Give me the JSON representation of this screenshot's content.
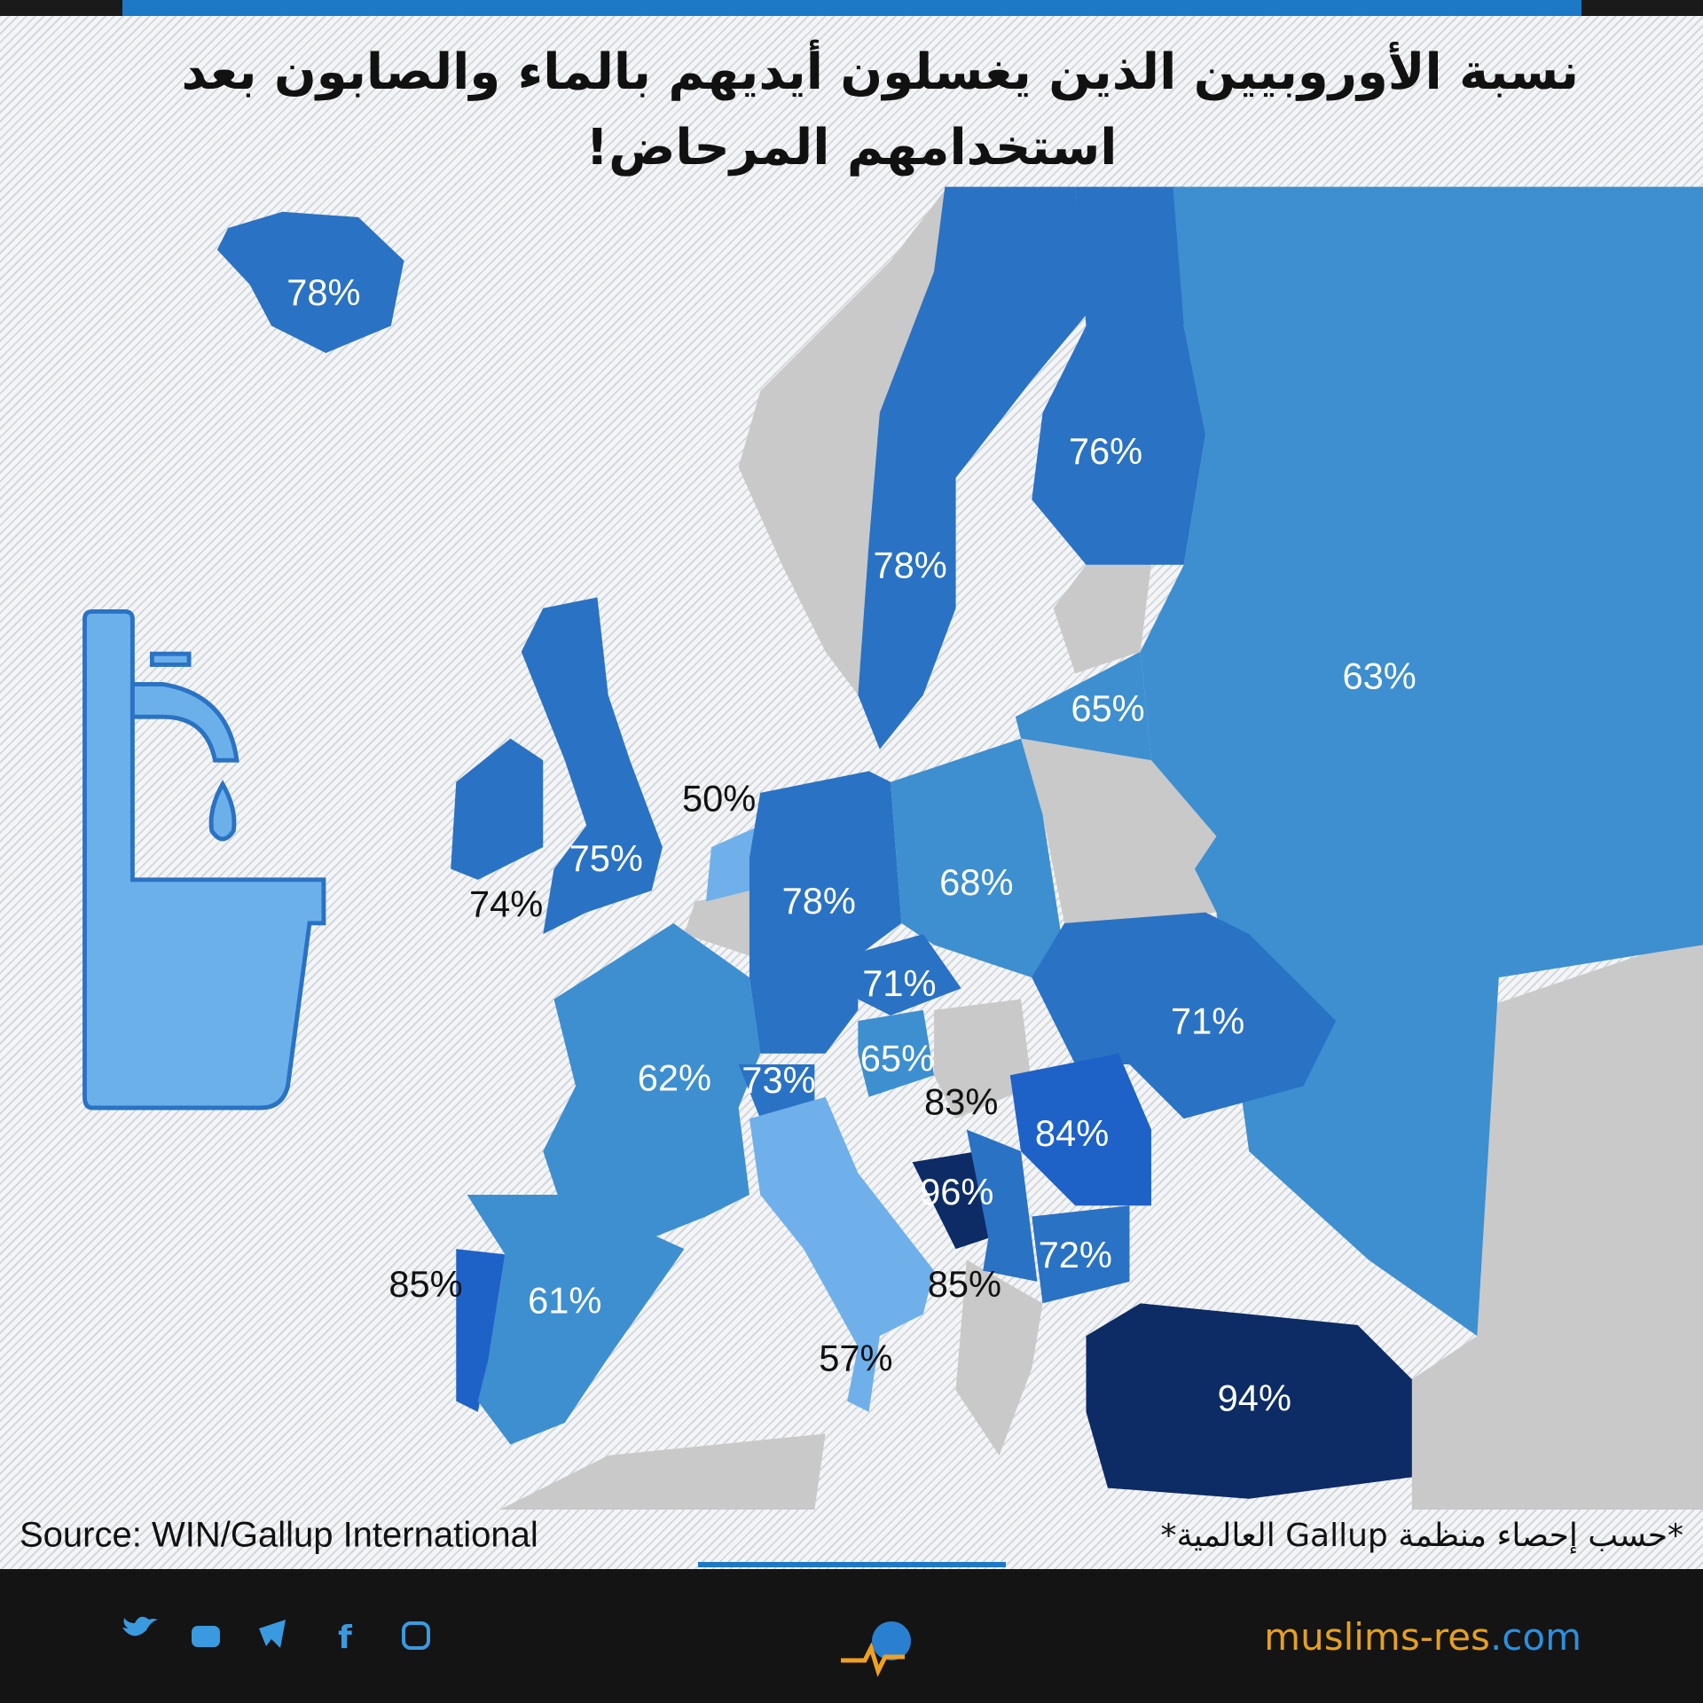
{
  "title": {
    "lines": [
      "نسبة الأوروبيين الذين يغسلون أيديهم بالماء والصابون بعد",
      "استخدامهم المرحاض!"
    ]
  },
  "map": {
    "regions": [
      {
        "label": "78%",
        "color": "#2a72c4",
        "label_color": "#ffffff"
      },
      {
        "label": "76%",
        "color": "#2a72c4",
        "label_color": "#ffffff"
      },
      {
        "label": "78%",
        "color": "#2a72c4",
        "label_color": "#ffffff"
      },
      {
        "label": "65%",
        "color": "#3d8fd0",
        "label_color": "#ffffff"
      },
      {
        "label": "63%",
        "color": "#3d8fd0",
        "label_color": "#ffffff"
      },
      {
        "label": "50%",
        "color": "#6fb0ea",
        "label_color": "#111111"
      },
      {
        "label": "75%",
        "color": "#2a72c4",
        "label_color": "#ffffff"
      },
      {
        "label": "74%",
        "color": "#2a72c4",
        "label_color": "#111111"
      },
      {
        "label": "78%",
        "color": "#2a72c4",
        "label_color": "#ffffff"
      },
      {
        "label": "68%",
        "color": "#3d8fd0",
        "label_color": "#ffffff"
      },
      {
        "label": "71%",
        "color": "#2a72c4",
        "label_color": "#ffffff"
      },
      {
        "label": "71%",
        "color": "#2a72c4",
        "label_color": "#ffffff"
      },
      {
        "label": "62%",
        "color": "#3d8fd0",
        "label_color": "#ffffff"
      },
      {
        "label": "73%",
        "color": "#2a72c4",
        "label_color": "#ffffff"
      },
      {
        "label": "65%",
        "color": "#3d8fd0",
        "label_color": "#ffffff"
      },
      {
        "label": "83%",
        "color": "#c9c9c9",
        "label_color": "#111111"
      },
      {
        "label": "84%",
        "color": "#1e62c8",
        "label_color": "#ffffff"
      },
      {
        "label": "96%",
        "color": "#0d2c66",
        "label_color": "#ffffff"
      },
      {
        "label": "72%",
        "color": "#2a72c4",
        "label_color": "#ffffff"
      },
      {
        "label": "85%",
        "color": "#1e62c8",
        "label_color": "#111111"
      },
      {
        "label": "61%",
        "color": "#3d8fd0",
        "label_color": "#ffffff"
      },
      {
        "label": "85%",
        "color": "#2a72c4",
        "label_color": "#111111"
      },
      {
        "label": "57%",
        "color": "#6fb0ea",
        "label_color": "#111111"
      },
      {
        "label": "94%",
        "color": "#0d2c66",
        "label_color": "#ffffff"
      }
    ]
  },
  "source": "Source: WIN/Gallup International",
  "note": "*حسب إحصاء منظمة Gallup العالمية*",
  "website": {
    "name": "muslims-res",
    "domain": ".com"
  }
}
